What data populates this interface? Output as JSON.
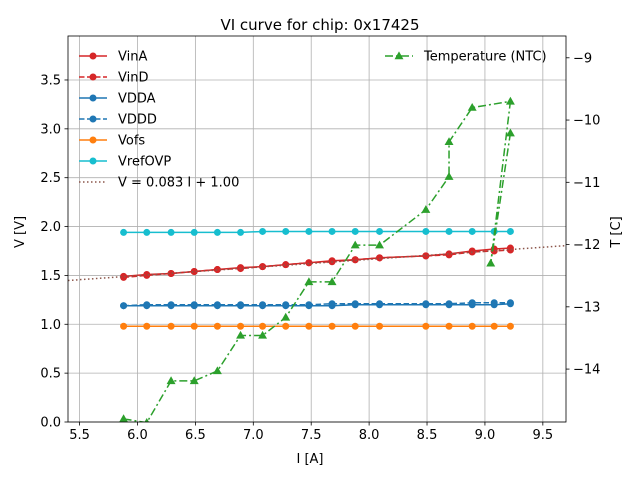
{
  "chart_data": {
    "type": "line",
    "title": "VI curve for chip: 0x17425",
    "xlabel": "I [A]",
    "ylabel": "V [V]",
    "y2label": "T [C]",
    "xlim": [
      5.4,
      9.7
    ],
    "ylim": [
      0.0,
      3.95
    ],
    "y2lim": [
      -14.85,
      -8.65
    ],
    "grid": true,
    "xticks": [
      5.5,
      6.0,
      6.5,
      7.0,
      7.5,
      8.0,
      8.5,
      9.0,
      9.5
    ],
    "xtick_labels": [
      "5.5",
      "6.0",
      "6.5",
      "7.0",
      "7.5",
      "8.0",
      "8.5",
      "9.0",
      "9.5"
    ],
    "yticks": [
      0.0,
      0.5,
      1.0,
      1.5,
      2.0,
      2.5,
      3.0,
      3.5
    ],
    "ytick_labels": [
      "0.0",
      "0.5",
      "1.0",
      "1.5",
      "2.0",
      "2.5",
      "3.0",
      "3.5"
    ],
    "y2ticks": [
      -14,
      -13,
      -12,
      -11,
      -10,
      -9
    ],
    "y2tick_labels": [
      "−14",
      "−13",
      "−12",
      "−11",
      "−10",
      "−9"
    ],
    "legend_left_placement": "upper-left",
    "legend_right_placement": "upper-right",
    "series": [
      {
        "name": "VinA",
        "color": "#d62728",
        "linestyle": "solid",
        "marker": "circle",
        "axis": "left",
        "x": [
          5.88,
          6.08,
          6.29,
          6.49,
          6.69,
          6.89,
          7.08,
          7.28,
          7.48,
          7.68,
          7.88,
          8.09,
          8.49,
          8.69,
          8.89,
          9.08,
          9.22
        ],
        "y": [
          1.49,
          1.51,
          1.52,
          1.54,
          1.56,
          1.58,
          1.59,
          1.61,
          1.63,
          1.65,
          1.66,
          1.68,
          1.7,
          1.72,
          1.75,
          1.77,
          1.78
        ]
      },
      {
        "name": "VinD",
        "color": "#d62728",
        "linestyle": "dashed",
        "marker": "circle",
        "axis": "left",
        "x": [
          5.88,
          6.08,
          6.29,
          6.49,
          6.69,
          6.89,
          7.08,
          7.28,
          7.48,
          7.68,
          7.88,
          8.09,
          8.49,
          8.69,
          8.89,
          9.08,
          9.22
        ],
        "y": [
          1.48,
          1.5,
          1.52,
          1.54,
          1.56,
          1.57,
          1.59,
          1.61,
          1.63,
          1.64,
          1.66,
          1.68,
          1.7,
          1.71,
          1.74,
          1.75,
          1.76
        ]
      },
      {
        "name": "VDDA",
        "color": "#1f77b4",
        "linestyle": "solid",
        "marker": "circle",
        "axis": "left",
        "x": [
          5.88,
          6.08,
          6.29,
          6.49,
          6.69,
          6.89,
          7.08,
          7.28,
          7.48,
          7.68,
          7.88,
          8.09,
          8.49,
          8.69,
          8.89,
          9.08,
          9.22
        ],
        "y": [
          1.19,
          1.19,
          1.19,
          1.19,
          1.19,
          1.19,
          1.19,
          1.19,
          1.19,
          1.19,
          1.2,
          1.2,
          1.2,
          1.2,
          1.2,
          1.2,
          1.21
        ]
      },
      {
        "name": "VDDD",
        "color": "#1f77b4",
        "linestyle": "dashed",
        "marker": "circle",
        "axis": "left",
        "x": [
          5.88,
          6.08,
          6.29,
          6.49,
          6.69,
          6.89,
          7.08,
          7.28,
          7.48,
          7.68,
          7.88,
          8.09,
          8.49,
          8.69,
          8.89,
          9.08,
          9.22
        ],
        "y": [
          1.19,
          1.2,
          1.2,
          1.2,
          1.2,
          1.2,
          1.2,
          1.2,
          1.2,
          1.21,
          1.21,
          1.21,
          1.21,
          1.21,
          1.22,
          1.22,
          1.22
        ]
      },
      {
        "name": "Vofs",
        "color": "#ff7f0e",
        "linestyle": "solid",
        "marker": "circle",
        "axis": "left",
        "x": [
          5.88,
          6.08,
          6.29,
          6.49,
          6.69,
          6.89,
          7.08,
          7.28,
          7.48,
          7.68,
          7.88,
          8.09,
          8.49,
          8.69,
          8.89,
          9.08,
          9.22
        ],
        "y": [
          0.98,
          0.98,
          0.98,
          0.98,
          0.98,
          0.98,
          0.98,
          0.98,
          0.98,
          0.98,
          0.98,
          0.98,
          0.98,
          0.98,
          0.98,
          0.98,
          0.98
        ]
      },
      {
        "name": "VrefOVP",
        "color": "#17becf",
        "linestyle": "solid",
        "marker": "circle",
        "axis": "left",
        "x": [
          5.88,
          6.08,
          6.29,
          6.49,
          6.69,
          6.89,
          7.08,
          7.28,
          7.48,
          7.68,
          7.88,
          8.09,
          8.49,
          8.69,
          8.89,
          9.08,
          9.22
        ],
        "y": [
          1.94,
          1.94,
          1.94,
          1.94,
          1.94,
          1.94,
          1.95,
          1.95,
          1.95,
          1.95,
          1.95,
          1.95,
          1.95,
          1.95,
          1.95,
          1.95,
          1.95
        ]
      },
      {
        "name": "V = 0.083 I + 1.00",
        "color": "#8c564b",
        "linestyle": "dotted",
        "marker": "none",
        "axis": "left",
        "x": [
          5.4,
          9.7
        ],
        "y": [
          1.448,
          1.805
        ]
      },
      {
        "name": "Temperature (NTC)",
        "color": "#2ca02c",
        "linestyle": "dashdot",
        "marker": "triangle",
        "axis": "right",
        "x": [
          5.88,
          6.08,
          6.29,
          6.49,
          6.69,
          6.89,
          7.08,
          7.28,
          7.48,
          7.68,
          7.88,
          8.09,
          8.49,
          8.69,
          8.69,
          8.89,
          9.22,
          9.05,
          9.22
        ],
        "y": [
          -14.8,
          -14.86,
          -14.19,
          -14.19,
          -14.03,
          -13.46,
          -13.46,
          -13.17,
          -12.6,
          -12.6,
          -12.01,
          -12.01,
          -11.44,
          -10.91,
          -10.35,
          -9.8,
          -9.7,
          -12.3,
          -10.21
        ]
      }
    ]
  }
}
